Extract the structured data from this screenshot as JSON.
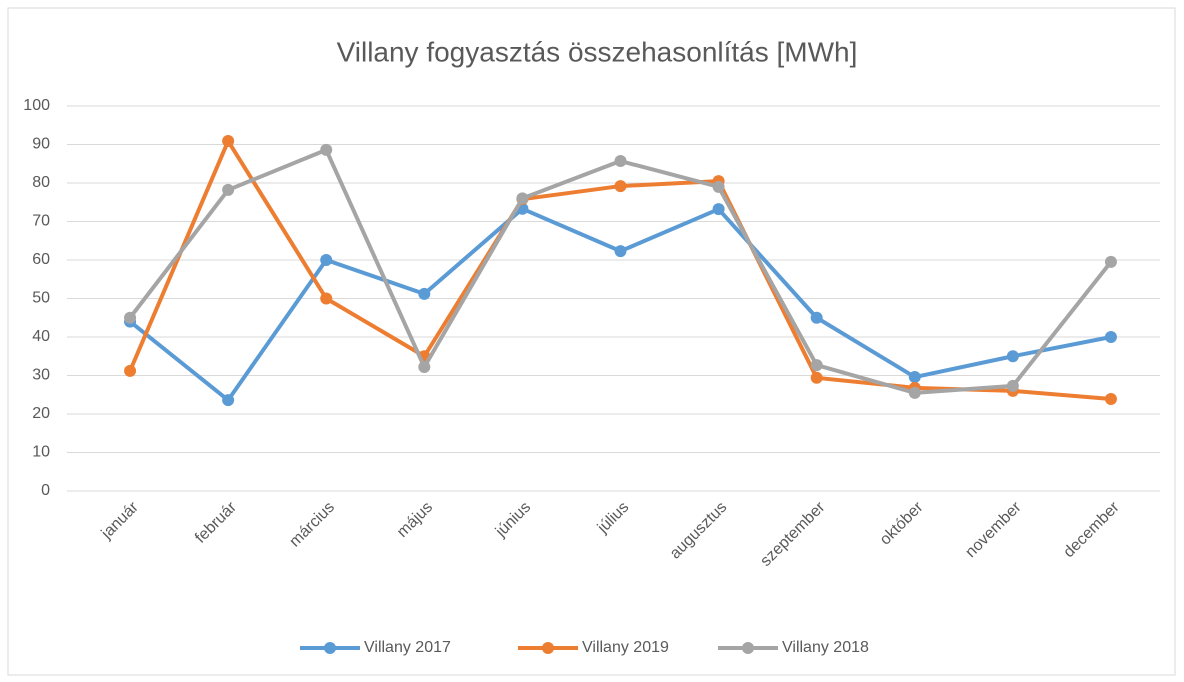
{
  "chart_data": {
    "type": "line",
    "title": "Villany fogyasztás összehasonlítás [MWh]",
    "categories": [
      "január",
      "február",
      "március",
      "május",
      "június",
      "július",
      "augusztus",
      "szeptember",
      "október",
      "november",
      "december"
    ],
    "series": [
      {
        "name": "Villany 2017",
        "color": "#5b9bd5",
        "values": [
          44,
          23.6,
          60,
          51.2,
          73.3,
          62.3,
          73.2,
          45,
          29.6,
          35,
          40
        ]
      },
      {
        "name": "Villany 2019",
        "color": "#ed7d31",
        "values": [
          31.2,
          90.9,
          50,
          35,
          75.8,
          79.2,
          80.5,
          29.4,
          26.8,
          26,
          23.9
        ]
      },
      {
        "name": "Villany 2018",
        "color": "#a5a5a5",
        "values": [
          45,
          78.2,
          88.6,
          32.2,
          76,
          85.7,
          79,
          32.7,
          25.5,
          27.3,
          59.5
        ]
      }
    ],
    "ylim": [
      0,
      100
    ],
    "yticks": [
      0,
      10,
      20,
      30,
      40,
      50,
      60,
      70,
      80,
      90,
      100
    ],
    "grid": true,
    "legend": "bottom"
  }
}
